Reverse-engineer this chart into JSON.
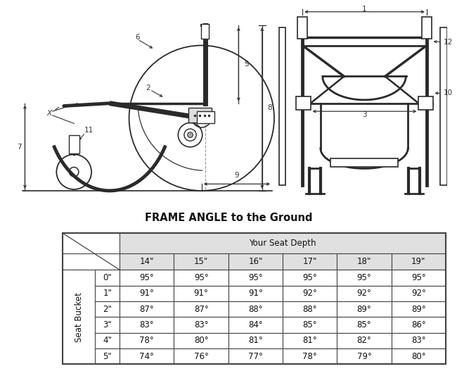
{
  "title": "FRAME ANGLE to the Ground",
  "title_fontsize": 10.5,
  "col_header": "Your Seat Depth",
  "col_labels": [
    "14\"",
    "15\"",
    "16\"",
    "17\"",
    "18\"",
    "19\""
  ],
  "row_header": "Seat Bucket",
  "row_labels": [
    "0\"",
    "1\"",
    "2\"",
    "3\"",
    "4\"",
    "5\""
  ],
  "table_data": [
    [
      "95°",
      "95°",
      "95°",
      "95°",
      "95°",
      "95°"
    ],
    [
      "91°",
      "91°",
      "91°",
      "92°",
      "92°",
      "92°"
    ],
    [
      "87°",
      "87°",
      "88°",
      "88°",
      "89°",
      "89°"
    ],
    [
      "83°",
      "83°",
      "84°",
      "85°",
      "85°",
      "86°"
    ],
    [
      "78°",
      "80°",
      "81°",
      "81°",
      "82°",
      "83°"
    ],
    [
      "74°",
      "76°",
      "77°",
      "78°",
      "79°",
      "80°"
    ]
  ],
  "header_bg": "#e0e0e0",
  "cell_bg": "#ffffff",
  "border_color": "#444444",
  "text_color": "#111111",
  "fig_bg": "#ffffff",
  "lc": "#2a2a2a",
  "dim_lc": "#333333"
}
